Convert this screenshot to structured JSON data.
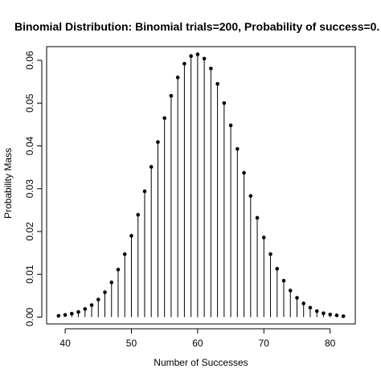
{
  "chart_data": {
    "type": "stem",
    "title": "Binomial Distribution:  Binomial trials=200, Probability of success=0.",
    "xlabel": "Number of Successes",
    "ylabel": "Probability Mass",
    "xlim": [
      37.2,
      83.8
    ],
    "ylim": [
      -0.0016,
      0.0632
    ],
    "x_ticks": [
      40,
      50,
      60,
      70,
      80
    ],
    "y_ticks": [
      0.0,
      0.01,
      0.02,
      0.03,
      0.04,
      0.05,
      0.06
    ],
    "y_tick_labels": [
      "0.00",
      "0.01",
      "0.02",
      "0.03",
      "0.04",
      "0.05",
      "0.06"
    ],
    "grid": false,
    "legend": "none",
    "x": [
      39,
      40,
      41,
      42,
      43,
      44,
      45,
      46,
      47,
      48,
      49,
      50,
      51,
      52,
      53,
      54,
      55,
      56,
      57,
      58,
      59,
      60,
      61,
      62,
      63,
      64,
      65,
      66,
      67,
      68,
      69,
      70,
      71,
      72,
      73,
      74,
      75,
      76,
      77,
      78,
      79,
      80,
      81,
      82
    ],
    "values": [
      0.0003,
      0.0005,
      0.0008,
      0.0012,
      0.0019,
      0.0028,
      0.0041,
      0.0058,
      0.0081,
      0.0111,
      0.0147,
      0.019,
      0.0239,
      0.0294,
      0.0351,
      0.0409,
      0.0465,
      0.0517,
      0.056,
      0.0592,
      0.061,
      0.0614,
      0.0604,
      0.0581,
      0.0545,
      0.05,
      0.0448,
      0.0393,
      0.0337,
      0.0283,
      0.0232,
      0.0186,
      0.0147,
      0.0113,
      0.0085,
      0.0062,
      0.0045,
      0.0032,
      0.0022,
      0.0014,
      0.0009,
      0.0006,
      0.0004,
      0.0002
    ],
    "color": "#000000"
  }
}
